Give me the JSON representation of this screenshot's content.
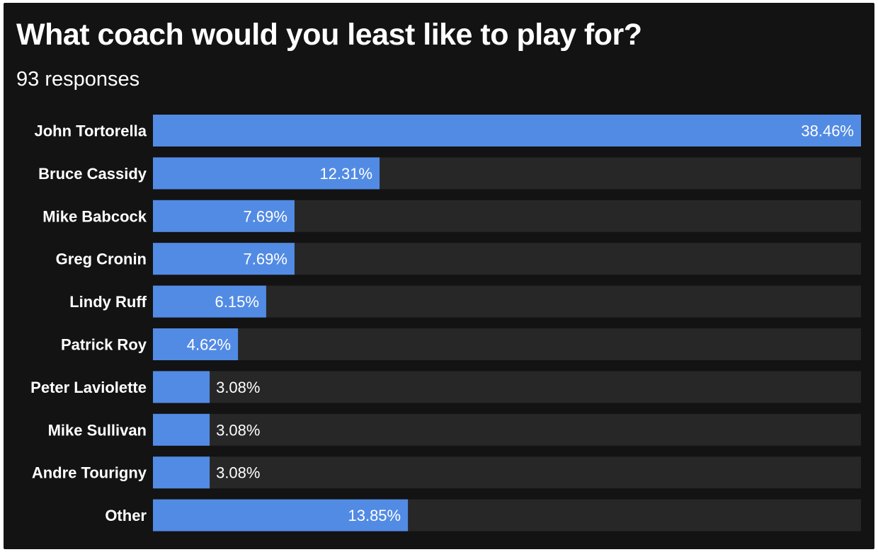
{
  "chart_data": {
    "type": "bar",
    "orientation": "horizontal",
    "title": "What coach would you least like to play for?",
    "subtitle": "93 responses",
    "categories": [
      "John Tortorella",
      "Bruce Cassidy",
      "Mike Babcock",
      "Greg Cronin",
      "Lindy Ruff",
      "Patrick Roy",
      "Peter Laviolette",
      "Mike Sullivan",
      "Andre Tourigny",
      "Other"
    ],
    "values": [
      38.46,
      12.31,
      7.69,
      7.69,
      6.15,
      4.62,
      3.08,
      3.08,
      3.08,
      13.85
    ],
    "value_labels": [
      "38.46%",
      "12.31%",
      "7.69%",
      "7.69%",
      "6.15%",
      "4.62%",
      "3.08%",
      "3.08%",
      "3.08%",
      "13.85%"
    ],
    "xlim": [
      0,
      38.46
    ],
    "grid": false,
    "legend": "none"
  },
  "colors": {
    "background": "#131313",
    "track": "#272727",
    "bar": "#528BE4",
    "text": "#ffffff"
  }
}
